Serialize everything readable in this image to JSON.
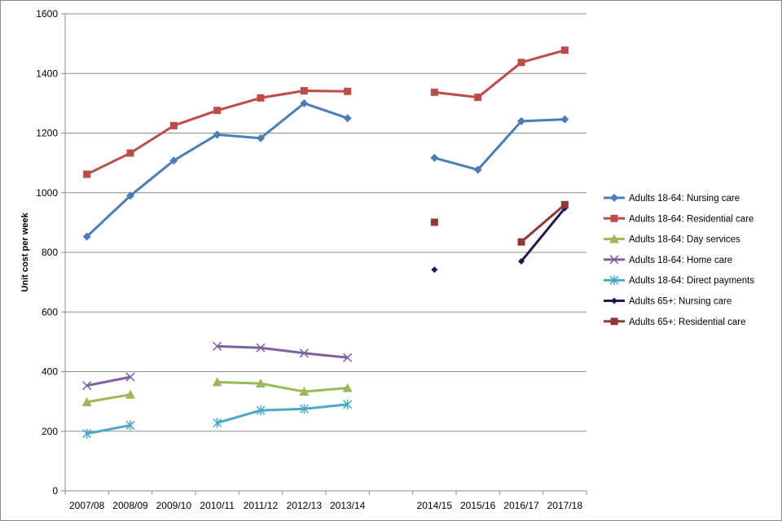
{
  "chart_data": {
    "type": "line",
    "title": "",
    "xlabel": "",
    "ylabel": "Unit cost per week",
    "ylim": [
      0,
      1600
    ],
    "yticks": [
      0,
      200,
      400,
      600,
      800,
      1000,
      1200,
      1400,
      1600
    ],
    "grid": true,
    "legend_position": "right",
    "categories": [
      "2007/08",
      "2008/09",
      "2009/10",
      "2010/11",
      "2011/12",
      "2012/13",
      "2013/14",
      "",
      "2014/15",
      "2015/16",
      "2016/17",
      "2017/18"
    ],
    "series": [
      {
        "name": "Adults 18-64: Nursing care",
        "color": "#4a7ebb",
        "marker": "diamond",
        "values": [
          853,
          990,
          1108,
          1195,
          1183,
          1300,
          1250,
          null,
          1117,
          1077,
          1240,
          1246
        ]
      },
      {
        "name": "Adults 18-64: Residential care",
        "color": "#be4b48",
        "marker": "square",
        "values": [
          1062,
          1133,
          1225,
          1276,
          1318,
          1342,
          1340,
          null,
          1337,
          1320,
          1437,
          1478
        ]
      },
      {
        "name": "Adults 18-64: Day services",
        "color": "#98b954",
        "marker": "triangle",
        "values": [
          298,
          323,
          null,
          365,
          360,
          333,
          345,
          null,
          null,
          null,
          null,
          null
        ]
      },
      {
        "name": "Adults 18-64: Home care",
        "color": "#7d60a0",
        "marker": "x",
        "values": [
          353,
          382,
          null,
          485,
          480,
          462,
          447,
          null,
          null,
          null,
          null,
          null
        ]
      },
      {
        "name": "Adults 18-64: Direct payments",
        "color": "#46aac5",
        "marker": "asterisk",
        "values": [
          192,
          220,
          null,
          228,
          270,
          275,
          290,
          null,
          null,
          null,
          null,
          null
        ]
      },
      {
        "name": "Adults 65+: Nursing care",
        "color": "#1f1a4e",
        "marker": "small-diamond",
        "values": [
          null,
          null,
          null,
          null,
          null,
          null,
          null,
          null,
          742,
          null,
          770,
          948
        ]
      },
      {
        "name": "Adults 65+: Residential care",
        "color": "#943634",
        "marker": "square",
        "values": [
          null,
          null,
          null,
          null,
          null,
          null,
          null,
          null,
          901,
          null,
          835,
          960
        ]
      }
    ]
  }
}
